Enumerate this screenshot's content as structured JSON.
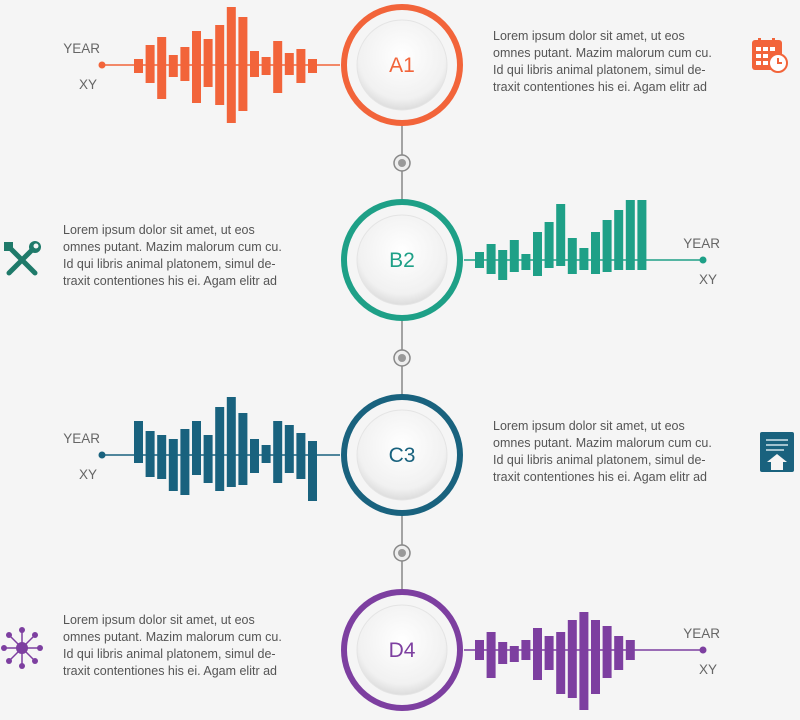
{
  "colors": {
    "A1": "#f2643a",
    "B2": "#1ea087",
    "C3": "#19627e",
    "D4": "#7d3fa0",
    "connector": "#888888",
    "text": "#555555"
  },
  "nodes": [
    {
      "id": "A1",
      "label": "A1",
      "year_label": "YEAR",
      "xy_label": "XY",
      "text": "Lorem ipsum dolor sit amet, ut eos\nomnes putant. Mazim malorum cum cu.\nId qui libris animal platonem, simul de-\ntraxit contentiones his ei. Agam elitr ad",
      "icon": "calendar-clock-icon",
      "bars": [
        [
          -6,
          8
        ],
        [
          -20,
          18
        ],
        [
          -28,
          34
        ],
        [
          -10,
          12
        ],
        [
          -18,
          16
        ],
        [
          -34,
          38
        ],
        [
          -26,
          22
        ],
        [
          -40,
          40
        ],
        [
          -58,
          58
        ],
        [
          -48,
          46
        ],
        [
          -14,
          12
        ],
        [
          -8,
          10
        ],
        [
          -24,
          28
        ],
        [
          -12,
          10
        ],
        [
          -16,
          18
        ],
        [
          -6,
          8
        ]
      ]
    },
    {
      "id": "B2",
      "label": "B2",
      "year_label": "YEAR",
      "xy_label": "XY",
      "text": "Lorem ipsum dolor sit amet, ut eos\nomnes putant. Mazim malorum cum cu.\nId qui libris animal platonem, simul de-\ntraxit contentiones his ei. Agam elitr ad",
      "icon": "wrench-screwdriver-icon",
      "bars": [
        [
          -8,
          8
        ],
        [
          -16,
          14
        ],
        [
          -10,
          20
        ],
        [
          -20,
          12
        ],
        [
          -6,
          10
        ],
        [
          -28,
          16
        ],
        [
          -38,
          8
        ],
        [
          -56,
          6
        ],
        [
          -22,
          14
        ],
        [
          -12,
          10
        ],
        [
          -28,
          14
        ],
        [
          -40,
          12
        ],
        [
          -50,
          10
        ],
        [
          -60,
          10
        ],
        [
          -60,
          10
        ]
      ]
    },
    {
      "id": "C3",
      "label": "C3",
      "year_label": "YEAR",
      "xy_label": "XY",
      "text": "Lorem ipsum dolor sit amet, ut eos\nomnes putant. Mazim malorum cum cu.\nId qui libris animal platonem, simul de-\ntraxit contentiones his ei. Agam elitr ad",
      "icon": "document-upload-icon",
      "bars": [
        [
          -34,
          8
        ],
        [
          -24,
          22
        ],
        [
          -20,
          24
        ],
        [
          -16,
          36
        ],
        [
          -26,
          40
        ],
        [
          -34,
          20
        ],
        [
          -20,
          28
        ],
        [
          -48,
          36
        ],
        [
          -58,
          32
        ],
        [
          -42,
          30
        ],
        [
          -16,
          18
        ],
        [
          -10,
          8
        ],
        [
          -34,
          28
        ],
        [
          -30,
          18
        ],
        [
          -22,
          24
        ],
        [
          -14,
          46
        ]
      ]
    },
    {
      "id": "D4",
      "label": "D4",
      "year_label": "YEAR",
      "xy_label": "XY",
      "text": "Lorem ipsum dolor sit amet, ut eos\nomnes putant. Mazim malorum cum cu.\nId qui libris animal platonem, simul de-\ntraxit contentiones his ei. Agam elitr ad",
      "icon": "network-nodes-icon",
      "bars": [
        [
          -10,
          10
        ],
        [
          -18,
          28
        ],
        [
          -8,
          14
        ],
        [
          -4,
          12
        ],
        [
          -10,
          10
        ],
        [
          -22,
          30
        ],
        [
          -14,
          20
        ],
        [
          -18,
          44
        ],
        [
          -30,
          48
        ],
        [
          -38,
          60
        ],
        [
          -30,
          44
        ],
        [
          -24,
          28
        ],
        [
          -14,
          20
        ],
        [
          -10,
          10
        ]
      ]
    }
  ]
}
